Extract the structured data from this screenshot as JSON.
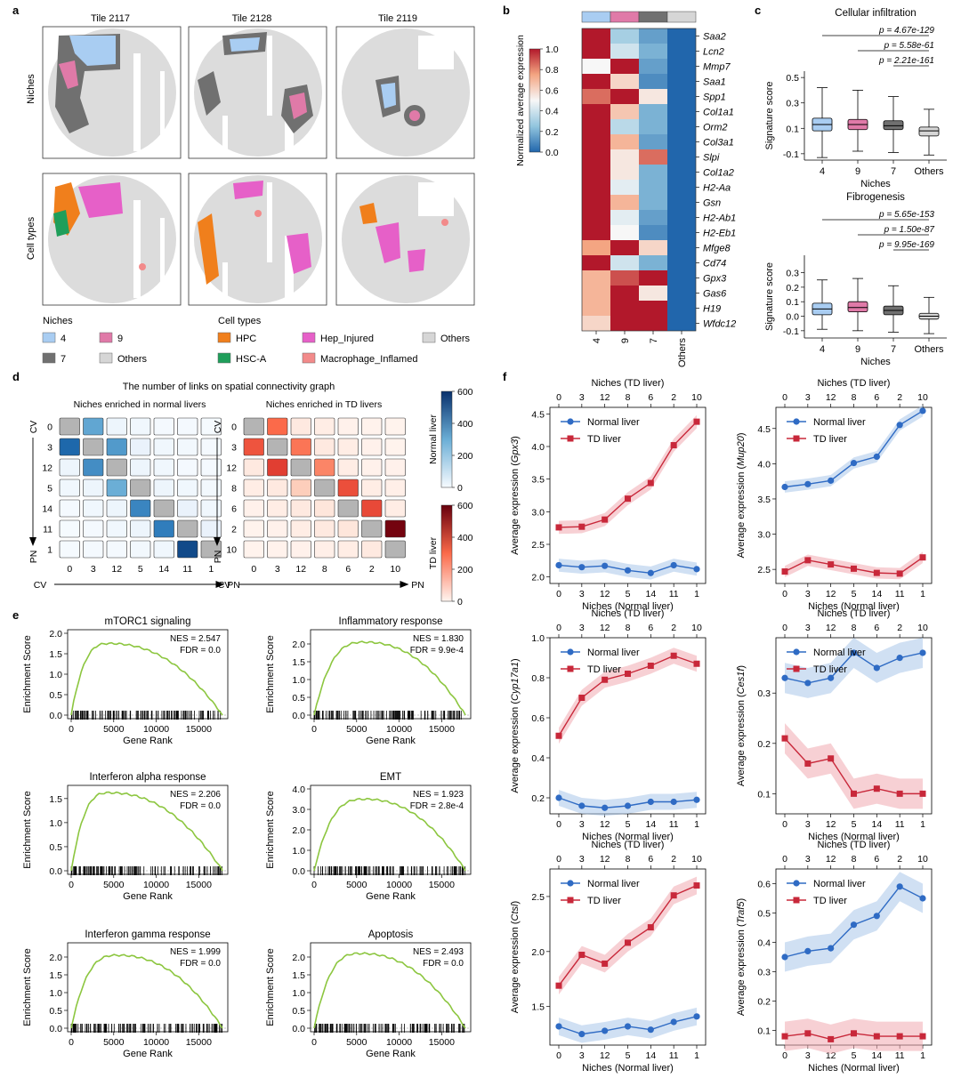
{
  "panel_letters": [
    "a",
    "b",
    "c",
    "d",
    "e",
    "f"
  ],
  "panel_a": {
    "tiles": [
      "Tile 2117",
      "Tile 2128",
      "Tile 2119"
    ],
    "row_labels": [
      "Niches",
      "Cell types"
    ],
    "niche_legend_title": "Niches",
    "niche_legend": [
      {
        "label": "4",
        "color": "#a9cdf2"
      },
      {
        "label": "9",
        "color": "#e07aa8"
      },
      {
        "label": "7",
        "color": "#707070"
      },
      {
        "label": "Others",
        "color": "#d6d6d6"
      }
    ],
    "celltype_legend_title": "Cell types",
    "celltype_legend": [
      {
        "label": "HPC",
        "color": "#f07f1c"
      },
      {
        "label": "Hep_Injured",
        "color": "#e660c8"
      },
      {
        "label": "Others",
        "color": "#d6d6d6"
      },
      {
        "label": "HSC-A",
        "color": "#1f9e5a"
      },
      {
        "label": "Macrophage_Inflamed",
        "color": "#f28a8a"
      }
    ]
  },
  "chart_data": [
    {
      "id": "b",
      "type": "heatmap",
      "genes": [
        "Saa2",
        "Lcn2",
        "Mmp7",
        "Saa1",
        "Spp1",
        "Col1a1",
        "Orm2",
        "Col3a1",
        "Slpi",
        "Col1a2",
        "H2-Aa",
        "Gsn",
        "H2-Ab1",
        "H2-Eb1",
        "Mfge8",
        "Cd74",
        "Gpx3",
        "Gas6",
        "H19",
        "Wfdc12"
      ],
      "columns": [
        "4",
        "9",
        "7",
        "Others"
      ],
      "column_colors": [
        "#a9cdf2",
        "#e07aa8",
        "#707070",
        "#d6d6d6"
      ],
      "values": [
        [
          1.0,
          0.3,
          0.15,
          0.0
        ],
        [
          1.0,
          0.4,
          0.2,
          0.0
        ],
        [
          0.5,
          1.0,
          0.15,
          0.0
        ],
        [
          1.0,
          0.6,
          0.1,
          0.0
        ],
        [
          0.85,
          1.0,
          0.55,
          0.0
        ],
        [
          1.0,
          0.65,
          0.2,
          0.0
        ],
        [
          1.0,
          0.35,
          0.2,
          0.0
        ],
        [
          1.0,
          0.7,
          0.15,
          0.0
        ],
        [
          1.0,
          0.55,
          0.85,
          0.0
        ],
        [
          1.0,
          0.55,
          0.2,
          0.0
        ],
        [
          1.0,
          0.45,
          0.2,
          0.0
        ],
        [
          1.0,
          0.7,
          0.2,
          0.0
        ],
        [
          1.0,
          0.45,
          0.15,
          0.0
        ],
        [
          1.0,
          0.5,
          0.1,
          0.0
        ],
        [
          0.75,
          1.0,
          0.6,
          0.0
        ],
        [
          1.0,
          0.4,
          0.2,
          0.0
        ],
        [
          0.7,
          0.9,
          1.0,
          0.0
        ],
        [
          0.7,
          1.0,
          0.55,
          0.0
        ],
        [
          0.7,
          1.0,
          1.0,
          0.0
        ],
        [
          0.6,
          1.0,
          1.0,
          0.0
        ]
      ],
      "colorbar_label": "Normalized average expression",
      "colorbar_ticks": [
        "0.0",
        "0.2",
        "0.4",
        "0.6",
        "0.8",
        "1.0"
      ]
    },
    {
      "id": "c1",
      "type": "box",
      "title": "Cellular infiltration",
      "xlabel": "Niches",
      "ylabel": "Signature score",
      "categories": [
        "4",
        "9",
        "7",
        "Others"
      ],
      "colors": [
        "#a9cdf2",
        "#e07aa8",
        "#707070",
        "#d6d6d6"
      ],
      "ylim": [
        -0.15,
        0.55
      ],
      "yticks": [
        "-0.1",
        "0.1",
        "0.3",
        "0.5"
      ],
      "boxes": [
        {
          "min": -0.13,
          "q1": 0.08,
          "median": 0.13,
          "q3": 0.18,
          "max": 0.42
        },
        {
          "min": -0.08,
          "q1": 0.09,
          "median": 0.13,
          "q3": 0.17,
          "max": 0.4
        },
        {
          "min": -0.09,
          "q1": 0.09,
          "median": 0.12,
          "q3": 0.16,
          "max": 0.35
        },
        {
          "min": -0.11,
          "q1": 0.04,
          "median": 0.08,
          "q3": 0.11,
          "max": 0.25
        }
      ],
      "pvalues": [
        "p = 4.67e-129",
        "p = 5.58e-61",
        "p = 2.21e-161"
      ]
    },
    {
      "id": "c2",
      "type": "box",
      "title": "Fibrogenesis",
      "xlabel": "Niches",
      "ylabel": "Signature score",
      "categories": [
        "4",
        "9",
        "7",
        "Others"
      ],
      "colors": [
        "#a9cdf2",
        "#e07aa8",
        "#707070",
        "#d6d6d6"
      ],
      "ylim": [
        -0.15,
        0.42
      ],
      "yticks": [
        "-0.1",
        "0.0",
        "0.1",
        "0.2",
        "0.3"
      ],
      "boxes": [
        {
          "min": -0.09,
          "q1": 0.01,
          "median": 0.05,
          "q3": 0.09,
          "max": 0.25
        },
        {
          "min": -0.1,
          "q1": 0.03,
          "median": 0.06,
          "q3": 0.1,
          "max": 0.26
        },
        {
          "min": -0.11,
          "q1": 0.01,
          "median": 0.04,
          "q3": 0.07,
          "max": 0.21
        },
        {
          "min": -0.12,
          "q1": -0.02,
          "median": 0.0,
          "q3": 0.02,
          "max": 0.13
        }
      ],
      "pvalues": [
        "p = 5.65e-153",
        "p = 1.50e-87",
        "p = 9.95e-169"
      ]
    },
    {
      "id": "d",
      "type": "heatmap",
      "title": "The number of links on spatial connectivity graph",
      "subplots": [
        {
          "title": "Niches enriched in normal livers",
          "labels": [
            "0",
            "3",
            "12",
            "5",
            "14",
            "11",
            "1"
          ],
          "values": [
            [
              0,
              320,
              30,
              20,
              10,
              8,
              5
            ],
            [
              470,
              20,
              350,
              40,
              20,
              15,
              8
            ],
            [
              30,
              380,
              0,
              30,
              20,
              10,
              10
            ],
            [
              20,
              30,
              300,
              0,
              30,
              20,
              15
            ],
            [
              10,
              20,
              30,
              400,
              0,
              40,
              20
            ],
            [
              5,
              10,
              20,
              30,
              420,
              0,
              40
            ],
            [
              5,
              8,
              10,
              15,
              20,
              540,
              0
            ]
          ],
          "diagonal_color": "#b4b4b4",
          "scale": "Normal liver"
        },
        {
          "title": "Niches enriched in TD livers",
          "labels": [
            "0",
            "3",
            "12",
            "8",
            "6",
            "2",
            "10"
          ],
          "values": [
            [
              0,
              300,
              30,
              20,
              10,
              8,
              5
            ],
            [
              340,
              20,
              280,
              30,
              20,
              10,
              5
            ],
            [
              30,
              380,
              0,
              250,
              20,
              10,
              10
            ],
            [
              20,
              30,
              100,
              0,
              350,
              20,
              15
            ],
            [
              10,
              20,
              30,
              40,
              0,
              360,
              20
            ],
            [
              5,
              10,
              20,
              30,
              40,
              0,
              580
            ],
            [
              5,
              8,
              10,
              15,
              20,
              30,
              0
            ]
          ],
          "diagonal_color": "#b4b4b4",
          "scale": "TD liver"
        }
      ],
      "axis_start": "CV",
      "axis_end": "PN",
      "colorbars": [
        {
          "label": "Normal liver",
          "ticks": [
            "0",
            "200",
            "400",
            "600"
          ]
        },
        {
          "label": "TD liver",
          "ticks": [
            "0",
            "200",
            "400",
            "600"
          ]
        }
      ]
    },
    {
      "id": "e",
      "type": "line",
      "xlabel": "Gene Rank",
      "ylabel": "Enrichment Score",
      "xticks": [
        "0",
        "5000",
        "10000",
        "15000"
      ],
      "plots": [
        {
          "title": "mTORC1 signaling",
          "nes": "NES = 2.547",
          "fdr": "FDR = 0.0",
          "ymax": 2.0,
          "yticks": [
            "0.0",
            "0.5",
            "1.0",
            "1.5",
            "2.0"
          ],
          "peak": 1.75,
          "peak_x": 4500
        },
        {
          "title": "Inflammatory response",
          "nes": "NES = 1.830",
          "fdr": "FDR = 9.9e-4",
          "ymax": 2.3,
          "yticks": [
            "0.0",
            "0.5",
            "1.0",
            "1.5",
            "2.0"
          ],
          "peak": 2.05,
          "peak_x": 6000
        },
        {
          "title": "Interferon alpha response",
          "nes": "NES = 2.206",
          "fdr": "FDR = 0.0",
          "ymax": 1.7,
          "yticks": [
            "0.0",
            "0.5",
            "1.0",
            "1.5"
          ],
          "peak": 1.62,
          "peak_x": 4500
        },
        {
          "title": "EMT",
          "nes": "NES = 1.923",
          "fdr": "FDR = 2.8e-4",
          "ymax": 4.0,
          "yticks": [
            "0.0",
            "1.0",
            "2.0",
            "3.0",
            "4.0"
          ],
          "peak": 3.5,
          "peak_x": 6000
        },
        {
          "title": "Interferon gamma response",
          "nes": "NES = 1.999",
          "fdr": "FDR = 0.0",
          "ymax": 2.3,
          "yticks": [
            "0.0",
            "0.5",
            "1.0",
            "1.5",
            "2.0"
          ],
          "peak": 2.05,
          "peak_x": 5500
        },
        {
          "title": "Apoptosis",
          "nes": "NES = 2.493",
          "fdr": "FDR = 0.0",
          "ymax": 2.3,
          "yticks": [
            "0.0",
            "0.5",
            "1.0",
            "1.5",
            "2.0"
          ],
          "peak": 2.1,
          "peak_x": 5500
        }
      ]
    },
    {
      "id": "f",
      "type": "line",
      "top_axis_label": "Niches (TD liver)",
      "top_ticks": [
        "0",
        "3",
        "12",
        "8",
        "6",
        "2",
        "10"
      ],
      "bottom_axis_label": "Niches (Normal liver)",
      "bottom_ticks": [
        "0",
        "3",
        "12",
        "5",
        "14",
        "11",
        "1"
      ],
      "legend": [
        "Normal liver",
        "TD liver"
      ],
      "series_colors": [
        "#2f6bc4",
        "#c8283a"
      ],
      "plots": [
        {
          "gene": "Gpx3",
          "ylabel_prefix": "Average expression (",
          "ylabel_suffix": ")",
          "ylim": [
            1.9,
            4.6
          ],
          "yticks": [
            "2.0",
            "2.5",
            "3.0",
            "3.5",
            "4.0",
            "4.5"
          ],
          "normal": [
            2.18,
            2.15,
            2.17,
            2.1,
            2.06,
            2.18,
            2.12
          ],
          "td": [
            2.76,
            2.77,
            2.88,
            3.2,
            3.44,
            4.02,
            4.38
          ],
          "band": 0.1
        },
        {
          "gene": "Mup20",
          "ylabel_prefix": "Average expression (",
          "ylabel_suffix": ")",
          "ylim": [
            2.3,
            4.8
          ],
          "yticks": [
            "2.5",
            "3.0",
            "3.5",
            "4.0",
            "4.5"
          ],
          "normal": [
            3.67,
            3.71,
            3.76,
            4.01,
            4.1,
            4.55,
            4.75
          ],
          "td": [
            2.47,
            2.63,
            2.57,
            2.51,
            2.45,
            2.44,
            2.67
          ],
          "band": 0.08
        },
        {
          "gene": "Cyp17a1",
          "ylabel_prefix": "Average expression (",
          "ylabel_suffix": ")",
          "ylim": [
            0.12,
            1.0
          ],
          "yticks": [
            "0.2",
            "0.4",
            "0.6",
            "0.8",
            "1.0"
          ],
          "normal": [
            0.2,
            0.16,
            0.15,
            0.16,
            0.18,
            0.18,
            0.19
          ],
          "td": [
            0.51,
            0.7,
            0.79,
            0.82,
            0.86,
            0.91,
            0.87
          ],
          "band": 0.04
        },
        {
          "gene": "Ces1f",
          "ylabel_prefix": "Average expression (",
          "ylabel_suffix": ")",
          "ylim": [
            0.06,
            0.41
          ],
          "yticks": [
            "0.1",
            "0.2",
            "0.3"
          ],
          "normal": [
            0.33,
            0.32,
            0.33,
            0.38,
            0.35,
            0.37,
            0.38
          ],
          "td": [
            0.21,
            0.16,
            0.17,
            0.1,
            0.11,
            0.1,
            0.1
          ],
          "band": 0.03
        },
        {
          "gene": "Ctsl",
          "ylabel_prefix": "Average expression (",
          "ylabel_suffix": ")",
          "ylim": [
            1.15,
            2.75
          ],
          "yticks": [
            "1.5",
            "2.0",
            "2.5"
          ],
          "normal": [
            1.32,
            1.25,
            1.28,
            1.32,
            1.29,
            1.36,
            1.41
          ],
          "td": [
            1.69,
            1.97,
            1.89,
            2.08,
            2.22,
            2.51,
            2.6
          ],
          "band": 0.08
        },
        {
          "gene": "Traf5",
          "ylabel_prefix": "Average expression (",
          "ylabel_suffix": ")",
          "ylim": [
            0.05,
            0.65
          ],
          "yticks": [
            "0.1",
            "0.2",
            "0.3",
            "0.4",
            "0.5",
            "0.6"
          ],
          "normal": [
            0.35,
            0.37,
            0.38,
            0.46,
            0.49,
            0.59,
            0.55
          ],
          "td": [
            0.08,
            0.09,
            0.07,
            0.09,
            0.08,
            0.08,
            0.08
          ],
          "band": 0.05
        }
      ]
    }
  ]
}
